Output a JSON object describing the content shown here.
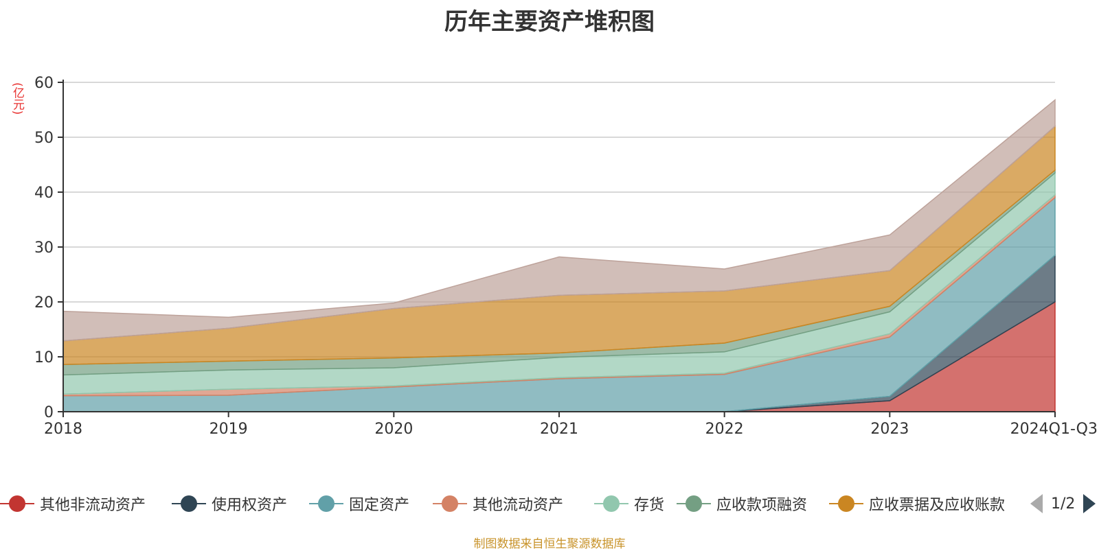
{
  "title": "历年主要资产堆积图",
  "y_unit": "(亿元)",
  "source_note": "制图数据来自恒生聚源数据库",
  "pager": {
    "text": "1/2"
  },
  "chart_data": {
    "type": "area",
    "stacked": true,
    "title": "历年主要资产堆积图",
    "ylabel": "(亿元)",
    "ylim": [
      0,
      60
    ],
    "yticks": [
      0,
      10,
      20,
      30,
      40,
      50,
      60
    ],
    "grid": true,
    "legend_position": "bottom",
    "categories": [
      "2018",
      "2019",
      "2020",
      "2021",
      "2022",
      "2023",
      "2024Q1-Q3"
    ],
    "series": [
      {
        "name": "其他非流动资产",
        "color": "#c23531",
        "values": [
          0.0,
          0.0,
          0.0,
          0.0,
          0.0,
          2.0,
          20.0
        ]
      },
      {
        "name": "使用权资产",
        "color": "#2f4554",
        "values": [
          0.0,
          0.0,
          0.0,
          0.0,
          0.0,
          0.8,
          8.5
        ]
      },
      {
        "name": "固定资产",
        "color": "#61a0a8",
        "values": [
          2.9,
          3.0,
          4.5,
          6.0,
          6.8,
          10.8,
          10.5
        ]
      },
      {
        "name": "其他流动资产",
        "color": "#d48265",
        "values": [
          0.3,
          1.1,
          0.2,
          0.2,
          0.2,
          0.6,
          0.5
        ]
      },
      {
        "name": "存货",
        "color": "#91c7ae",
        "values": [
          3.5,
          3.5,
          3.3,
          3.7,
          3.9,
          4.0,
          4.0
        ]
      },
      {
        "name": "应收款项融资",
        "color": "#749f83",
        "values": [
          1.9,
          1.6,
          1.8,
          0.8,
          1.6,
          1.0,
          0.5
        ]
      },
      {
        "name": "应收票据及应收账款",
        "color": "#ca8622",
        "values": [
          4.3,
          6.0,
          9.0,
          10.5,
          9.5,
          6.5,
          8.0
        ]
      },
      {
        "name": "",
        "color": "#bda29a",
        "values": [
          5.4,
          2.0,
          1.0,
          7.0,
          4.0,
          6.5,
          4.8
        ]
      }
    ]
  }
}
